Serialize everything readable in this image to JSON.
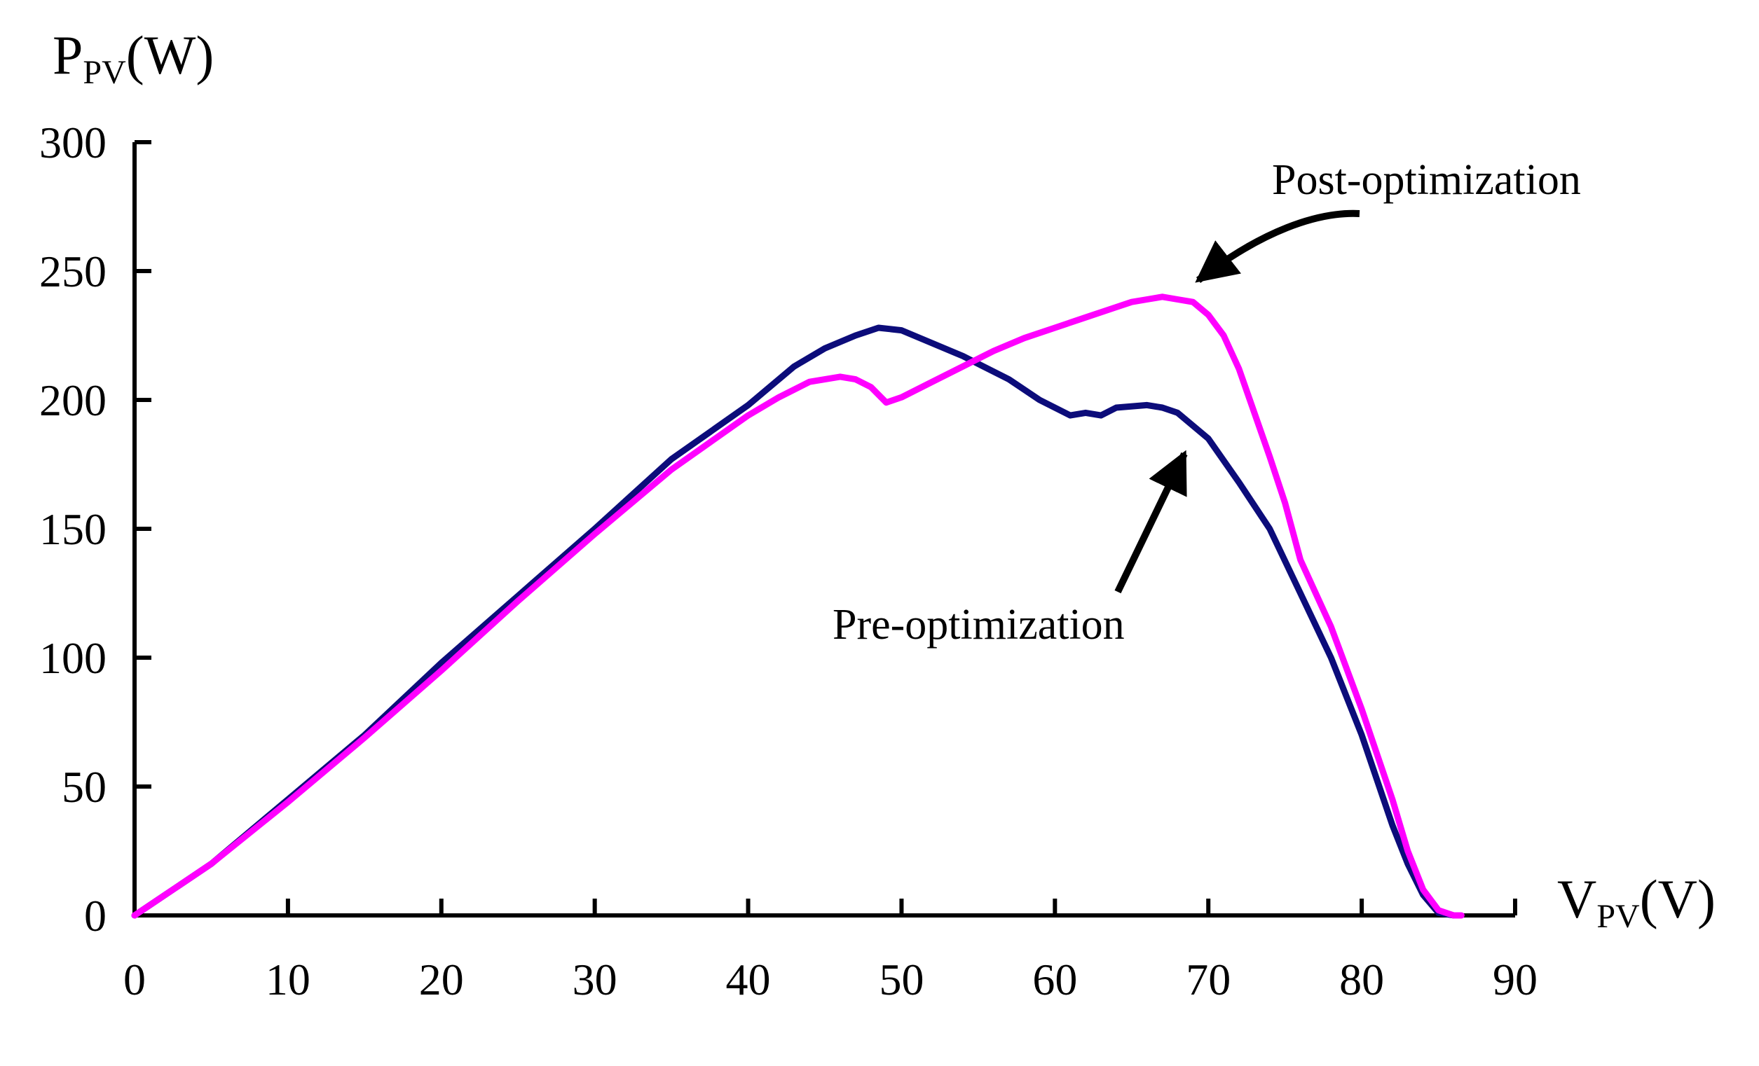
{
  "chart_data": {
    "type": "line",
    "title": "",
    "ylabel": {
      "main": "P",
      "sub": "PV",
      "unit": "(W)"
    },
    "xlabel": {
      "main": "V",
      "sub": "PV",
      "unit": "(V)"
    },
    "xlim": [
      0,
      90
    ],
    "ylim": [
      0,
      300
    ],
    "xticks": [
      "0",
      "10",
      "20",
      "30",
      "40",
      "50",
      "60",
      "70",
      "80",
      "90"
    ],
    "yticks": [
      "0",
      "50",
      "100",
      "150",
      "200",
      "250",
      "300"
    ],
    "grid": false,
    "series": [
      {
        "name": "Pre-optimization",
        "color": "#0c0c7a",
        "points": [
          [
            0,
            0
          ],
          [
            5,
            20
          ],
          [
            10,
            45
          ],
          [
            15,
            70
          ],
          [
            20,
            98
          ],
          [
            25,
            124
          ],
          [
            30,
            150
          ],
          [
            35,
            177
          ],
          [
            40,
            198
          ],
          [
            43,
            213
          ],
          [
            45,
            220
          ],
          [
            47,
            225
          ],
          [
            48.5,
            228
          ],
          [
            50,
            227
          ],
          [
            52,
            222
          ],
          [
            54,
            217
          ],
          [
            55,
            214
          ],
          [
            57,
            208
          ],
          [
            59,
            200
          ],
          [
            61,
            194
          ],
          [
            62,
            195
          ],
          [
            63,
            194
          ],
          [
            64,
            197
          ],
          [
            66,
            198
          ],
          [
            67,
            197
          ],
          [
            68,
            195
          ],
          [
            70,
            185
          ],
          [
            72,
            168
          ],
          [
            74,
            150
          ],
          [
            76,
            125
          ],
          [
            78,
            100
          ],
          [
            80,
            70
          ],
          [
            82,
            35
          ],
          [
            83,
            20
          ],
          [
            84,
            8
          ],
          [
            85,
            1
          ],
          [
            86,
            0
          ]
        ]
      },
      {
        "name": "Post-optimization",
        "color": "#ff00ff",
        "points": [
          [
            0,
            0
          ],
          [
            5,
            20
          ],
          [
            10,
            44
          ],
          [
            15,
            69
          ],
          [
            20,
            95
          ],
          [
            25,
            122
          ],
          [
            30,
            148
          ],
          [
            35,
            173
          ],
          [
            40,
            194
          ],
          [
            42,
            201
          ],
          [
            44,
            207
          ],
          [
            46,
            209
          ],
          [
            47,
            208
          ],
          [
            48,
            205
          ],
          [
            49,
            199
          ],
          [
            50,
            201
          ],
          [
            52,
            207
          ],
          [
            54,
            213
          ],
          [
            56,
            219
          ],
          [
            58,
            224
          ],
          [
            60,
            228
          ],
          [
            62,
            232
          ],
          [
            64,
            236
          ],
          [
            65,
            238
          ],
          [
            66,
            239
          ],
          [
            67,
            240
          ],
          [
            68,
            239
          ],
          [
            69,
            238
          ],
          [
            70,
            233
          ],
          [
            71,
            225
          ],
          [
            72,
            212
          ],
          [
            73,
            195
          ],
          [
            74,
            178
          ],
          [
            75,
            160
          ],
          [
            76,
            138
          ],
          [
            78,
            112
          ],
          [
            80,
            80
          ],
          [
            82,
            45
          ],
          [
            83,
            25
          ],
          [
            84,
            10
          ],
          [
            85,
            2
          ],
          [
            86,
            0
          ],
          [
            86.5,
            0
          ]
        ]
      }
    ],
    "annotations": [
      {
        "text": "Post-optimization",
        "target_series": "Post-optimization"
      },
      {
        "text": "Pre-optimization",
        "target_series": "Pre-optimization"
      }
    ]
  }
}
